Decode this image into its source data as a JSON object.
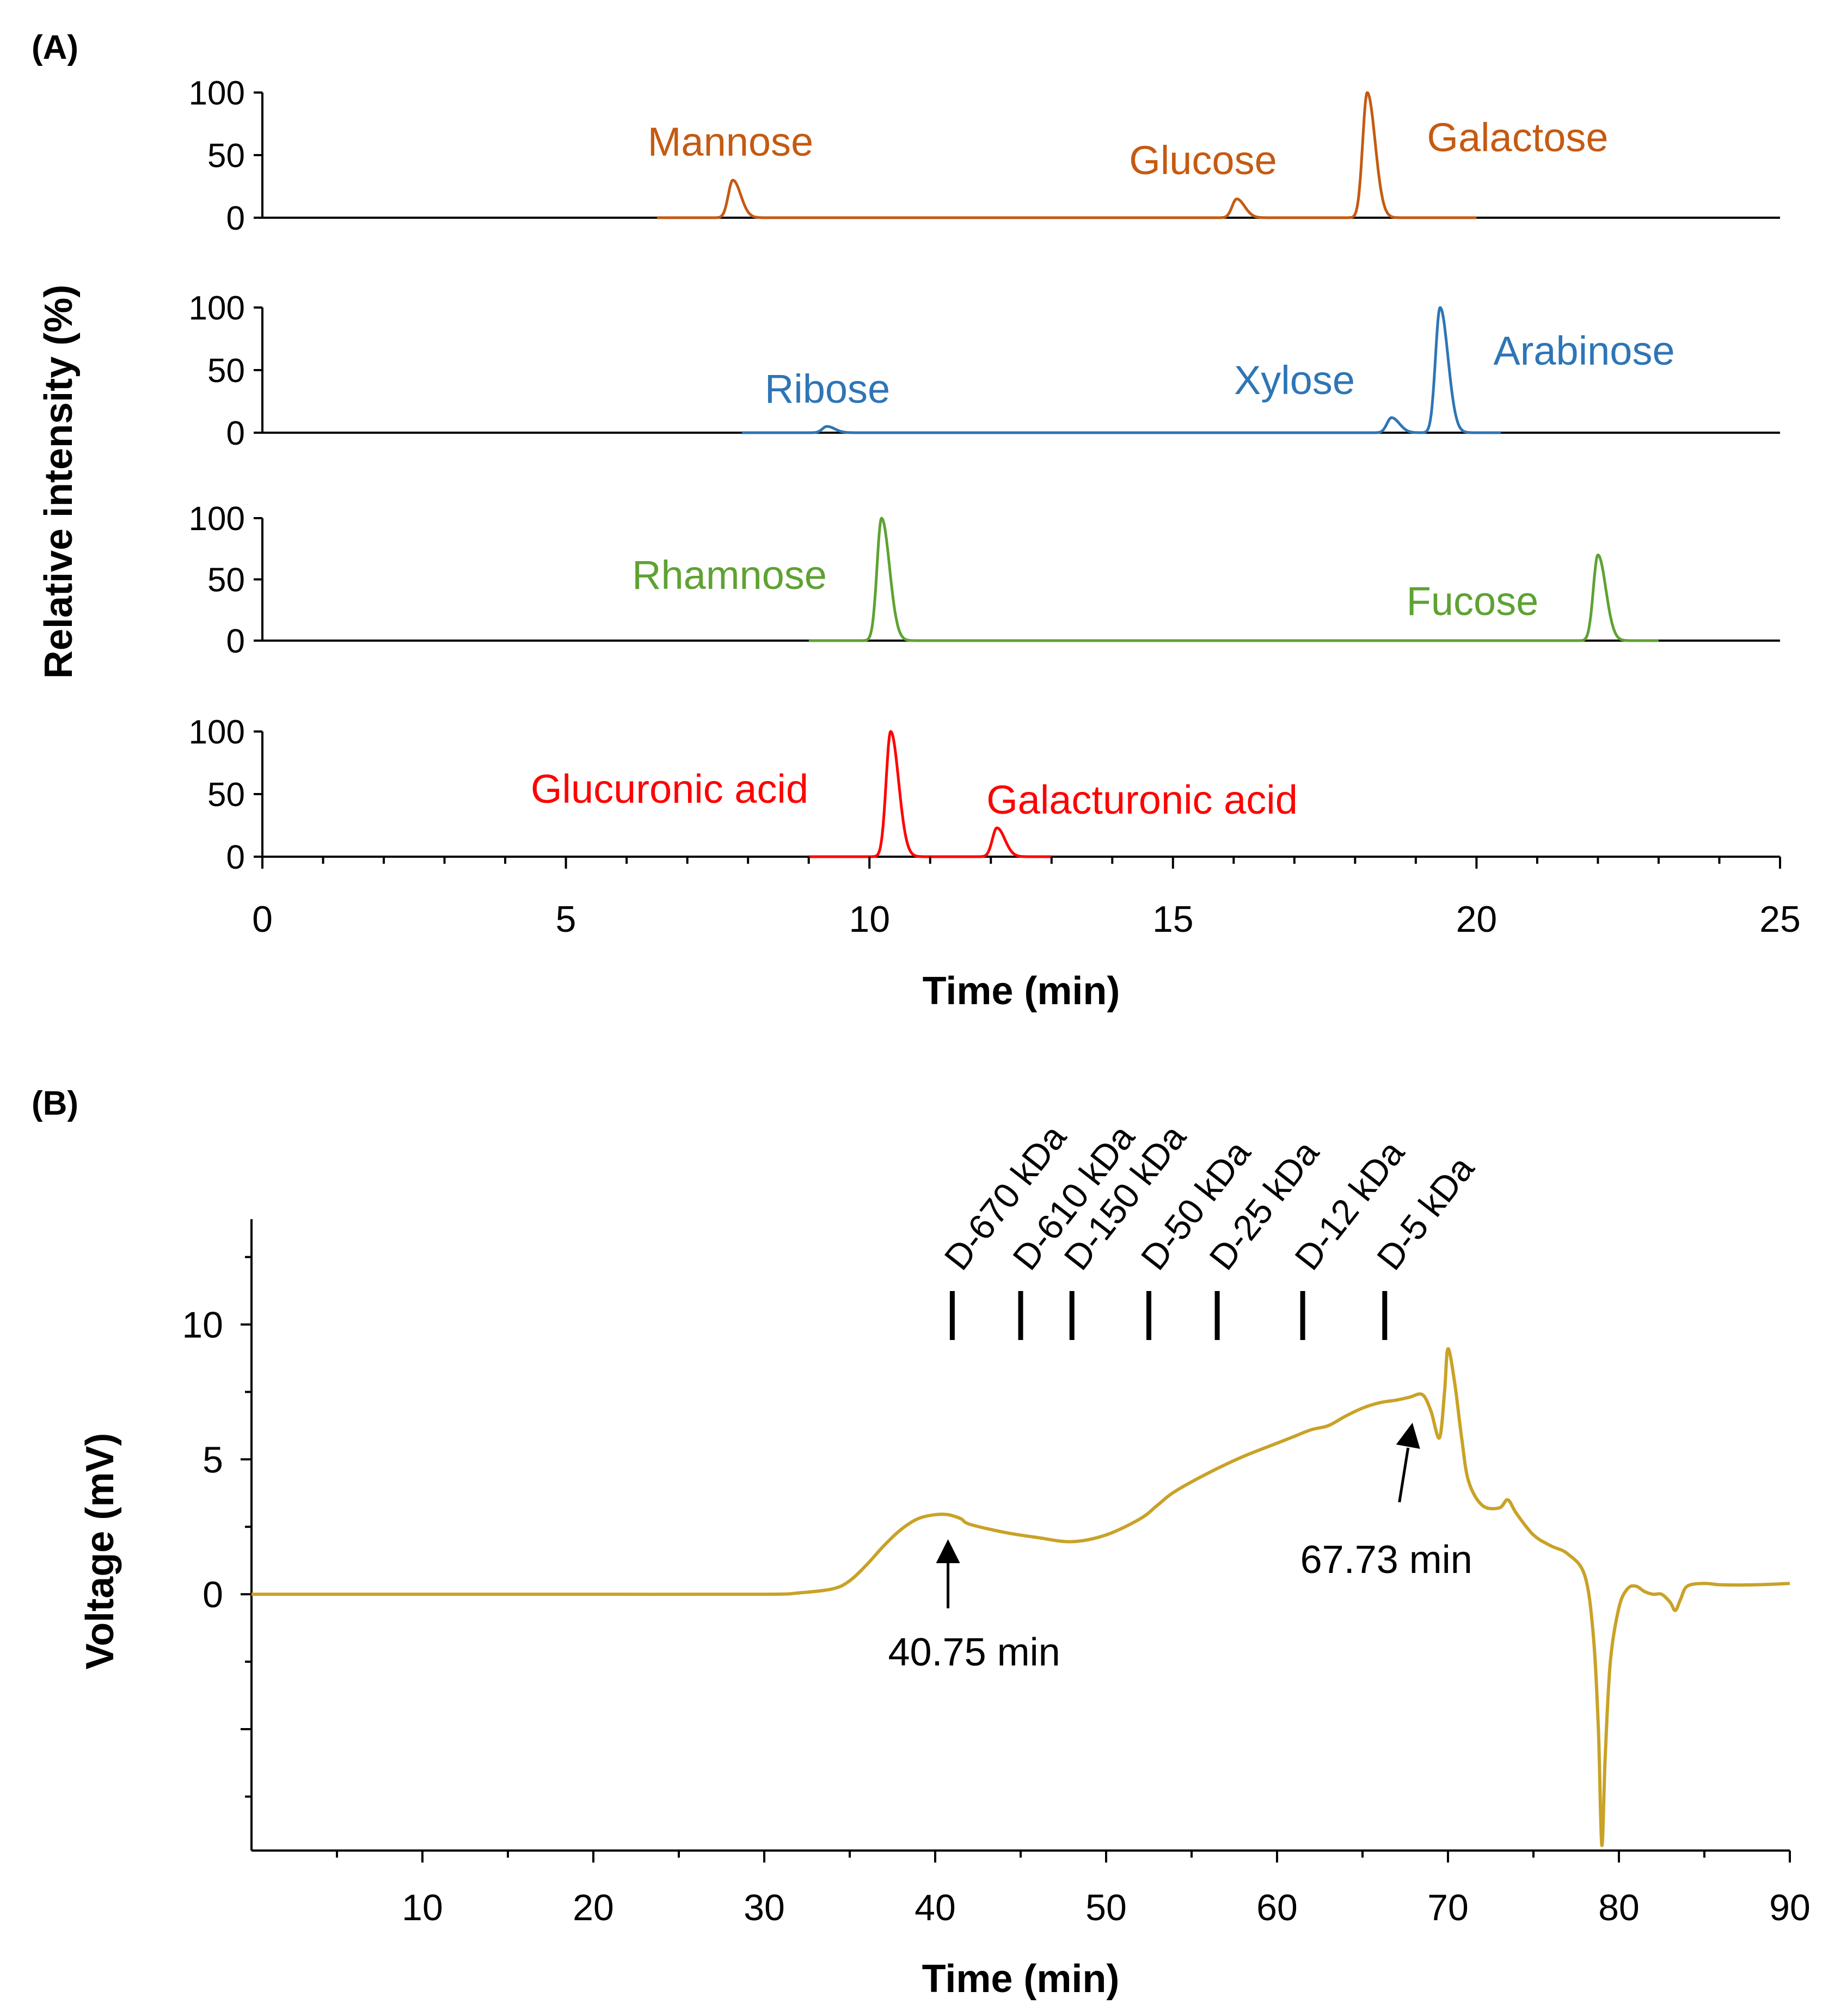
{
  "panel_labels": {
    "a": "(A)",
    "b": "(B)"
  },
  "colors": {
    "axis": "#000000",
    "orange": "#C55A11",
    "blue": "#2E75B6",
    "green": "#5EA232",
    "red": "#FF0000",
    "gold": "#C9A227"
  },
  "chart_data": [
    {
      "type": "line",
      "panel": "(A)",
      "xlabel": "Time (min)",
      "ylabel": "Relative intensity (%)",
      "xlim": [
        0,
        25
      ],
      "x_ticks": [
        "0",
        "5",
        "10",
        "15",
        "20",
        "25"
      ],
      "ylim": [
        0,
        100
      ],
      "y_ticks": [
        "0",
        "50",
        "100"
      ],
      "grid": false,
      "stacked_subplots": [
        {
          "color": "#C55A11",
          "trace_range": [
            6.5,
            20
          ],
          "peaks": [
            {
              "name": "Mannose",
              "x": 7.75,
              "y": 30
            },
            {
              "name": "Glucose",
              "x": 16.05,
              "y": 15
            },
            {
              "name": "Galactose",
              "x": 18.2,
              "y": 100
            }
          ]
        },
        {
          "color": "#2E75B6",
          "trace_range": [
            7.9,
            20.4
          ],
          "peaks": [
            {
              "name": "Ribose",
              "x": 9.3,
              "y": 5
            },
            {
              "name": "Xylose",
              "x": 18.6,
              "y": 12
            },
            {
              "name": "Arabinose",
              "x": 19.4,
              "y": 100
            }
          ]
        },
        {
          "color": "#5EA232",
          "trace_range": [
            9,
            23
          ],
          "peaks": [
            {
              "name": "Rhamnose",
              "x": 10.2,
              "y": 100
            },
            {
              "name": "Fucose",
              "x": 22,
              "y": 70
            }
          ]
        },
        {
          "color": "#FF0000",
          "trace_range": [
            9,
            13
          ],
          "peaks": [
            {
              "name": "Glucuronic acid",
              "x": 10.35,
              "y": 100
            },
            {
              "name": "Galacturonic acid",
              "x": 12.1,
              "y": 23
            }
          ]
        }
      ]
    },
    {
      "type": "line",
      "panel": "(B)",
      "xlabel": "Time (min)",
      "ylabel": "Voltage (mV)",
      "xlim": [
        0,
        90
      ],
      "x_ticks": [
        "10",
        "20",
        "30",
        "40",
        "50",
        "60",
        "70",
        "80",
        "90"
      ],
      "ylim": [
        -9.5,
        13.5
      ],
      "y_ticks": [
        "0",
        "5",
        "10"
      ],
      "grid": false,
      "color": "#C9A227",
      "series": [
        {
          "x": [
            0,
            5,
            10,
            20,
            30,
            32,
            34,
            35,
            36,
            37,
            38,
            39,
            40,
            40.75,
            41.5,
            42,
            44,
            46,
            48,
            50,
            52,
            53,
            54,
            56,
            58,
            60,
            61,
            62,
            63,
            64,
            65,
            66,
            67,
            67.73,
            68.5,
            69,
            69.5,
            69.8,
            70,
            70.4,
            70.8,
            71.2,
            72,
            73,
            73.5,
            74,
            75,
            76,
            77,
            78,
            78.5,
            78.8,
            79,
            79.2,
            79.5,
            80,
            80.5,
            81,
            81.5,
            82,
            82.5,
            83,
            83.3,
            83.6,
            84,
            85,
            86,
            88,
            90
          ],
          "y": [
            0,
            0,
            0,
            0,
            0,
            0.05,
            0.2,
            0.5,
            1.1,
            1.8,
            2.4,
            2.8,
            2.95,
            2.95,
            2.8,
            2.6,
            2.3,
            2.1,
            1.95,
            2.2,
            2.8,
            3.3,
            3.8,
            4.5,
            5.1,
            5.6,
            5.85,
            6.1,
            6.25,
            6.6,
            6.9,
            7.1,
            7.2,
            7.3,
            7.4,
            6.8,
            5.8,
            7.5,
            9.1,
            7.8,
            5.8,
            4.2,
            3.3,
            3.2,
            3.5,
            3.0,
            2.2,
            1.8,
            1.5,
            0.7,
            -1.5,
            -5,
            -9.3,
            -6,
            -2.5,
            -0.5,
            0.2,
            0.3,
            0.1,
            0,
            0,
            -0.3,
            -0.6,
            -0.2,
            0.3,
            0.4,
            0.35,
            0.35,
            0.4
          ]
        }
      ],
      "markers": [
        {
          "label": "D-670 kDa",
          "x": 41
        },
        {
          "label": "D-610 kDa",
          "x": 45
        },
        {
          "label": "D-150 kDa",
          "x": 48
        },
        {
          "label": "D-50 kDa",
          "x": 52.5
        },
        {
          "label": "D-25 kDa",
          "x": 56.5
        },
        {
          "label": "D-12 kDa",
          "x": 61.5
        },
        {
          "label": "D-5 kDa",
          "x": 66.3
        }
      ],
      "annotations": [
        {
          "text": "40.75 min",
          "x": 40.75,
          "position": "below"
        },
        {
          "text": "67.73 min",
          "x": 67.73,
          "position": "below"
        }
      ]
    }
  ]
}
